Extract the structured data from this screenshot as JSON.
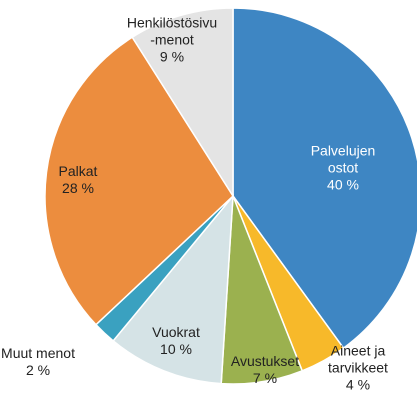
{
  "chart_data": {
    "type": "pie",
    "categories": [
      "Palvelujen\nostot",
      "Aineet ja\ntarvikkeet",
      "Avustukset",
      "Vuokrat",
      "Muut menot",
      "Palkat",
      "Henkilöstösivu\n-menot"
    ],
    "values": [
      40,
      4,
      7,
      10,
      2,
      28,
      9
    ],
    "value_labels": [
      "40 %",
      "4 %",
      "7 %",
      "10 %",
      "2 %",
      "28 %",
      "9 %"
    ],
    "colors": [
      "#3e86c3",
      "#f7b92a",
      "#9bb14f",
      "#d5e3e6",
      "#3aa1c0",
      "#ec8d3e",
      "#e4e4e4"
    ]
  }
}
